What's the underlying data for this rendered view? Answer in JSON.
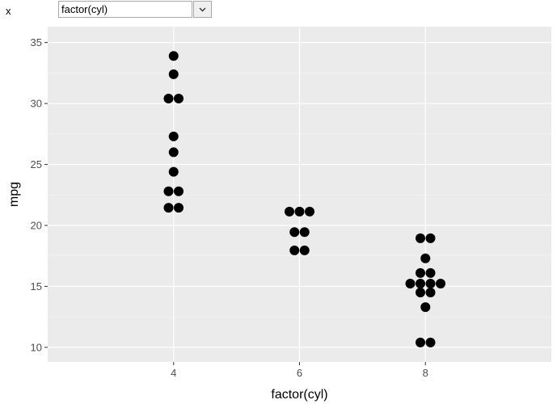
{
  "controls": {
    "x_label": "x",
    "x_select_value": "factor(cyl)",
    "dropdown_icon": "chevron-down-icon"
  },
  "colors": {
    "panel_bg": "#ebebeb",
    "grid_major": "#ffffff",
    "grid_minor": "#f5f5f5",
    "point": "#000000",
    "tick_text": "#4d4d4d"
  },
  "chart_data": {
    "type": "scatter",
    "subtype": "dotplot",
    "title": "",
    "xlabel": "factor(cyl)",
    "ylabel": "mpg",
    "categories": [
      "4",
      "6",
      "8"
    ],
    "ylim": [
      8.8,
      36.3
    ],
    "yticks": [
      10,
      15,
      20,
      25,
      30,
      35
    ],
    "grid": true,
    "legend": "none",
    "groups": [
      {
        "category": "4",
        "values": [
          22.8,
          24.4,
          22.8,
          32.4,
          30.4,
          33.9,
          21.5,
          27.3,
          26.0,
          30.4,
          21.4
        ]
      },
      {
        "category": "6",
        "values": [
          21.0,
          21.0,
          21.4,
          18.1,
          19.2,
          17.8,
          19.7
        ]
      },
      {
        "category": "8",
        "values": [
          18.7,
          14.3,
          16.4,
          17.3,
          15.2,
          10.4,
          10.4,
          14.7,
          15.5,
          15.2,
          13.3,
          19.2,
          15.8,
          15.0
        ]
      }
    ]
  }
}
